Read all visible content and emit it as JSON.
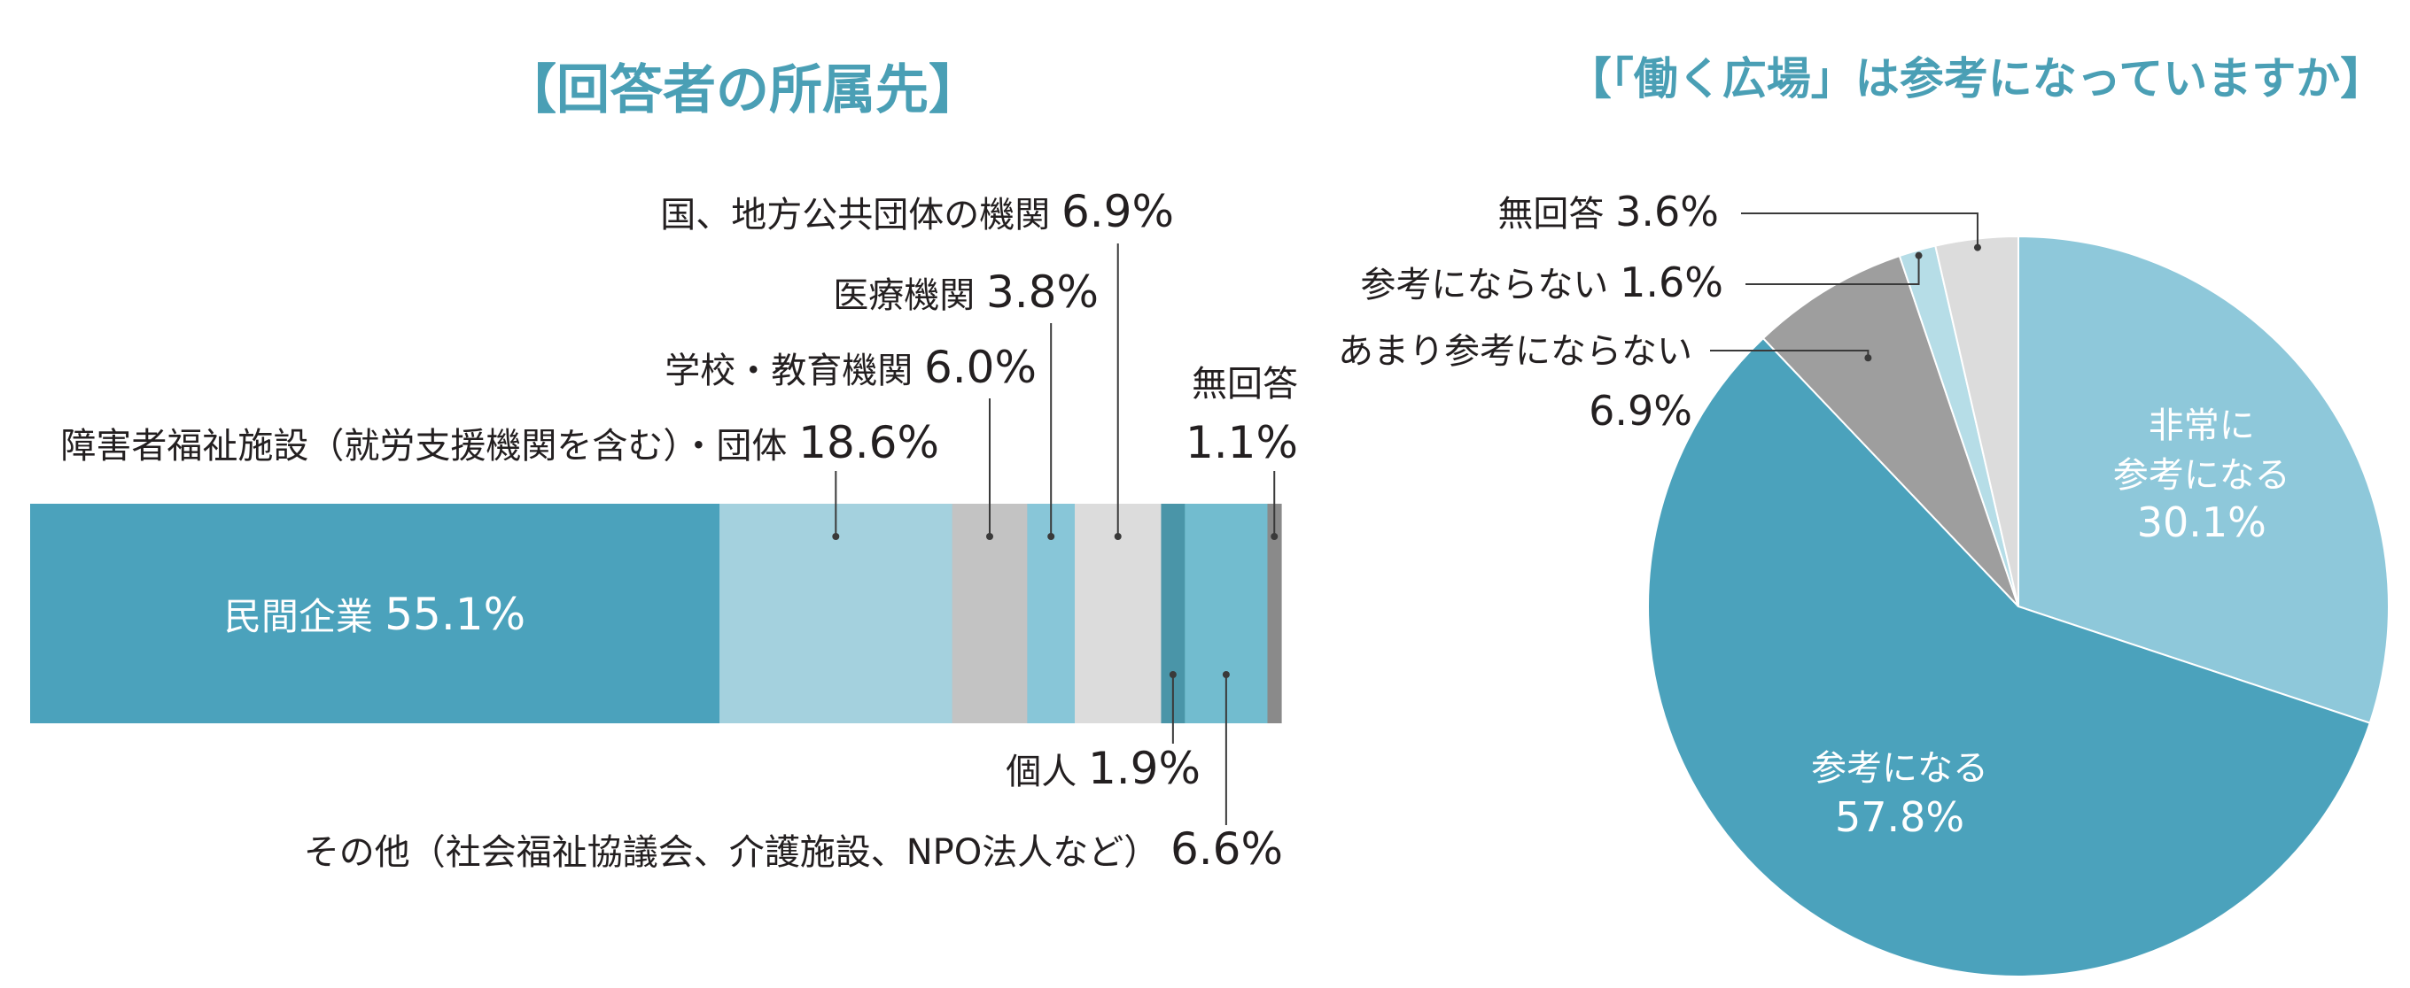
{
  "colors": {
    "title": "#4a9fb5",
    "text": "#231f20",
    "leader": "#3a3a3a"
  },
  "chart_data": [
    {
      "type": "bar",
      "orientation": "horizontal-stacked",
      "title": "【回答者の所属先】",
      "unit": "%",
      "segments": [
        {
          "label": "民間企業",
          "value": 55.1,
          "value_label": "55.1%",
          "color": "#4ba2bc"
        },
        {
          "label": "障害者福祉施設（就労支援機関を含む）・団体",
          "value": 18.6,
          "value_label": "18.6%",
          "color": "#a4d1de"
        },
        {
          "label": "学校・教育機関",
          "value": 6.0,
          "value_label": "6.0%",
          "color": "#c3c3c3"
        },
        {
          "label": "医療機関",
          "value": 3.8,
          "value_label": "3.8%",
          "color": "#88c6d8"
        },
        {
          "label": "国、地方公共団体の機関",
          "value": 6.9,
          "value_label": "6.9%",
          "color": "#dcdcdc"
        },
        {
          "label": "個人",
          "value": 1.9,
          "value_label": "1.9%",
          "color": "#4a95a8"
        },
        {
          "label": "その他（社会福祉協議会、介護施設、NPO法人など）",
          "value": 6.6,
          "value_label": "6.6%",
          "color": "#72bccf"
        },
        {
          "label": "無回答",
          "value": 1.1,
          "value_label": "1.1%",
          "color": "#8a8a8a"
        }
      ]
    },
    {
      "type": "pie",
      "title": "【「働く広場」は参考になっていますか】",
      "unit": "%",
      "slices": [
        {
          "label": "非常に参考になる",
          "label_lines": [
            "非常に",
            "参考になる"
          ],
          "value": 30.1,
          "value_label": "30.1%",
          "color": "#8ec8da"
        },
        {
          "label": "参考になる",
          "label_lines": [
            "参考になる"
          ],
          "value": 57.8,
          "value_label": "57.8%",
          "color": "#4ba2bc"
        },
        {
          "label": "あまり参考にならない",
          "value": 6.9,
          "value_label": "6.9%",
          "color": "#9e9e9e"
        },
        {
          "label": "参考にならない",
          "value": 1.6,
          "value_label": "1.6%",
          "color": "#b6dde7"
        },
        {
          "label": "無回答",
          "value": 3.6,
          "value_label": "3.6%",
          "color": "#dcdcdc"
        }
      ]
    }
  ]
}
